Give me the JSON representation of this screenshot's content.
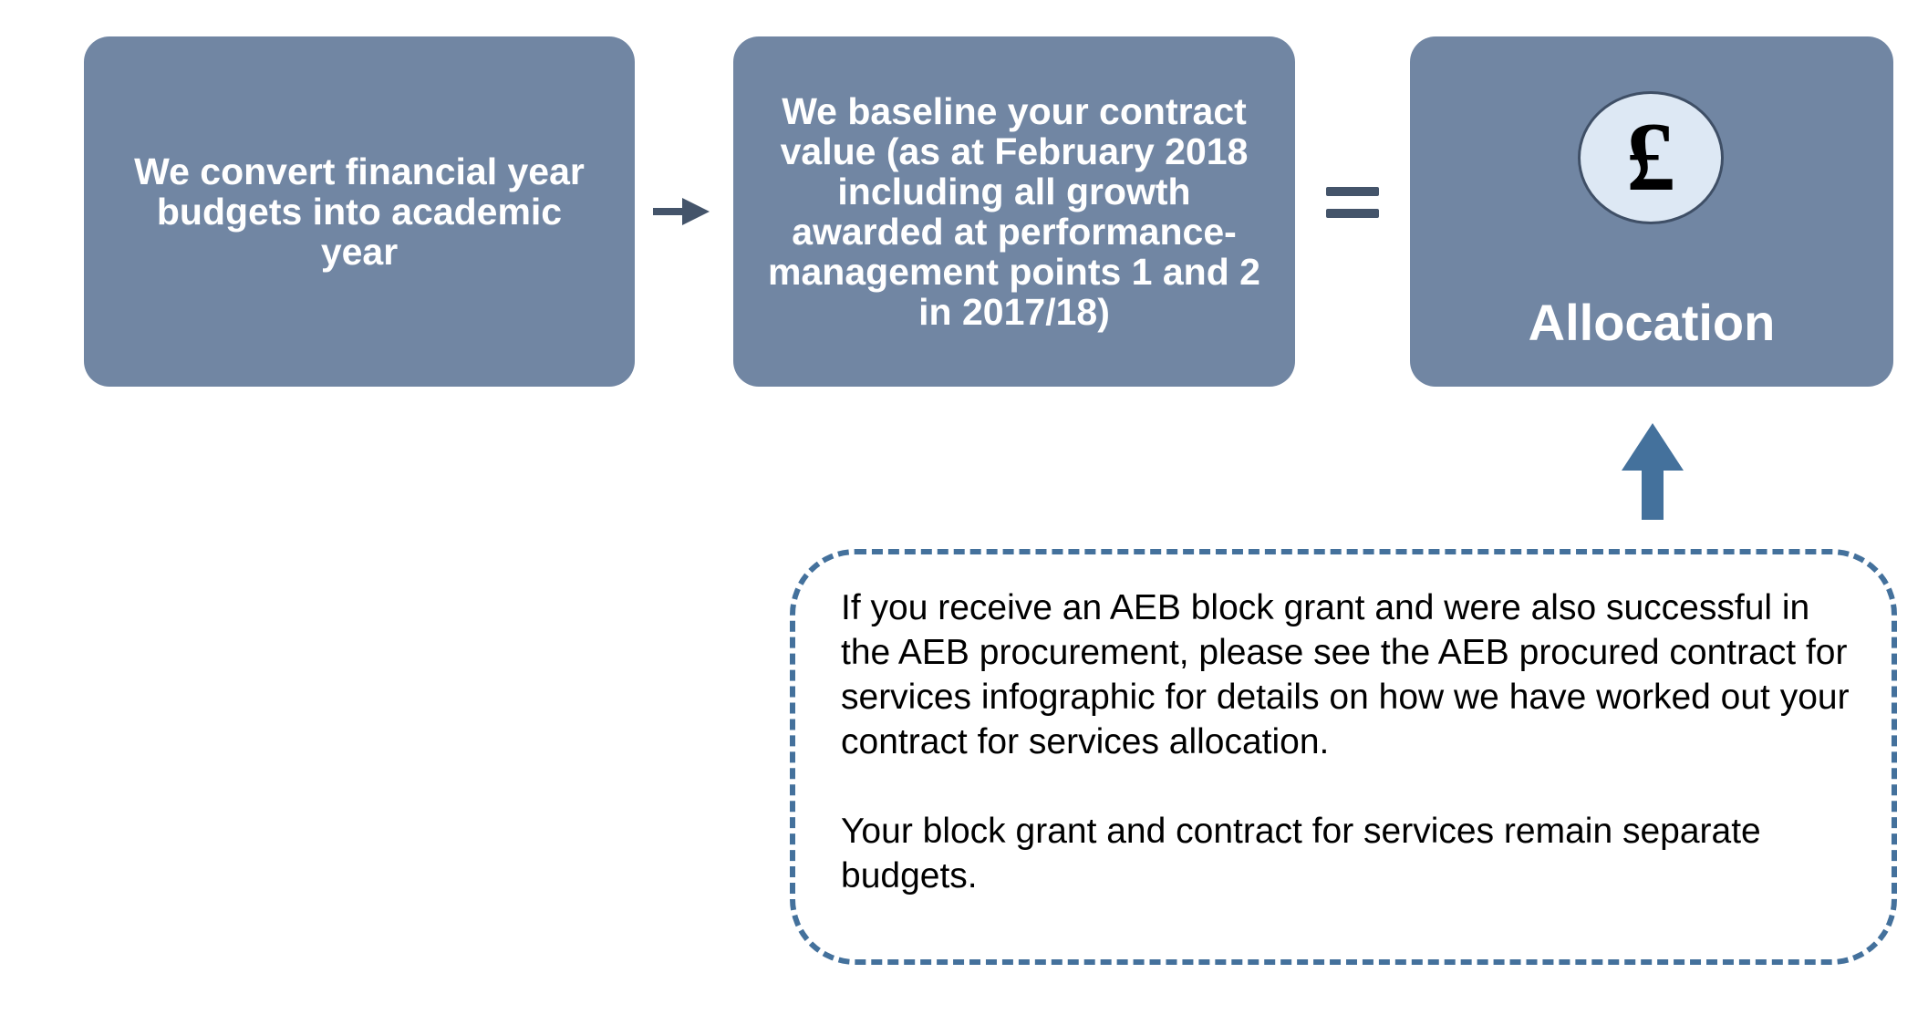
{
  "steps": [
    {
      "label": "We convert financial year budgets into academic year"
    },
    {
      "label": "We baseline your contract value (as at February 2018 including all growth awarded at performance-management points 1 and 2 in 2017/18)"
    }
  ],
  "result": {
    "symbol": "£",
    "label": "Allocation"
  },
  "note": {
    "paragraphs": [
      "If you receive an AEB block grant and were also successful in the AEB procurement, please see the AEB procured contract for services infographic for details on how we have worked out your contract for services allocation.",
      "Your block grant and contract for services remain separate budgets."
    ]
  },
  "colors": {
    "box_fill": "#7186a3",
    "connector": "#44546a",
    "note_border": "#44719c",
    "up_arrow": "#44719c",
    "coin_fill": "#dde8f4"
  },
  "icons": {
    "step_connector": "arrow-right-icon",
    "result_connector": "equals-icon",
    "coin": "pound-icon",
    "note_pointer": "arrow-up-icon"
  }
}
